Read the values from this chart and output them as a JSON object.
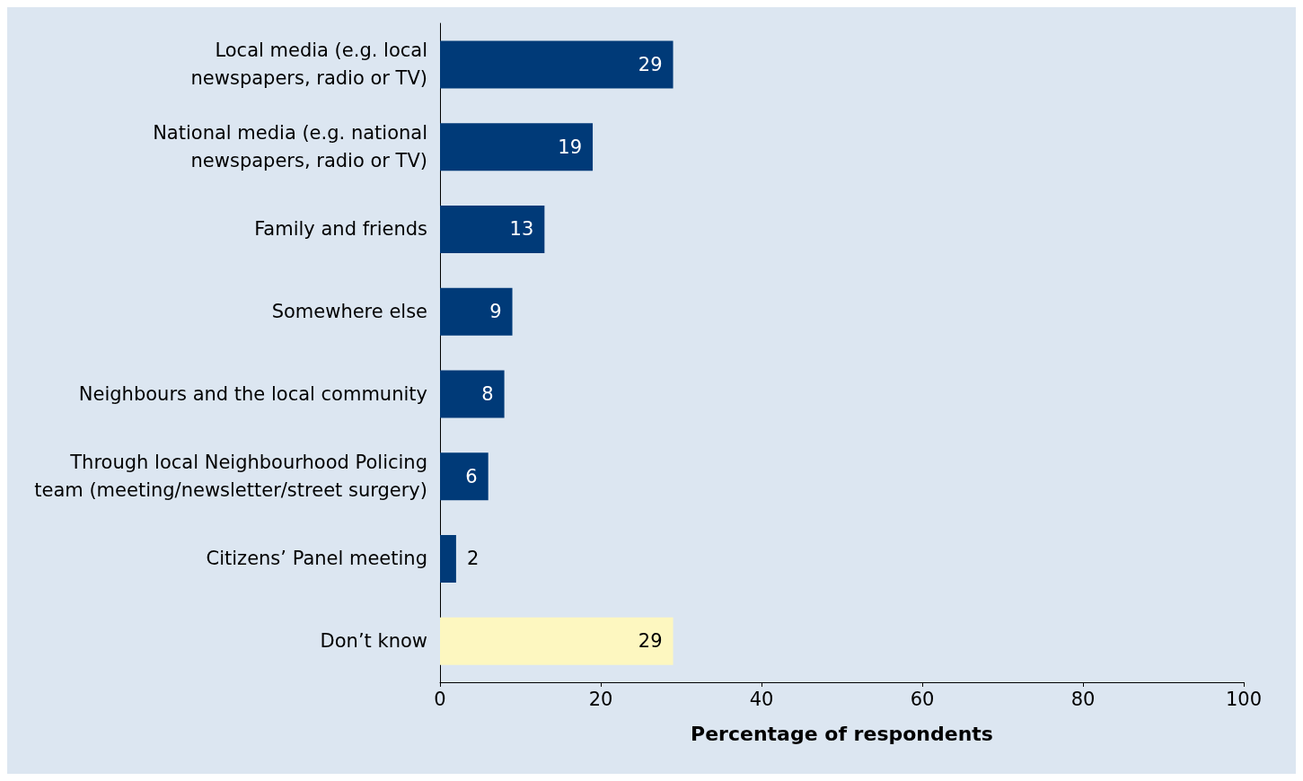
{
  "chart_data": {
    "type": "bar",
    "orientation": "horizontal",
    "categories": [
      "Local media (e.g. local\nnewspapers, radio or TV)",
      "National media (e.g. national\nnewspapers, radio or TV)",
      "Family and friends",
      "Somewhere else",
      "Neighbours and the local community",
      "Through local Neighbourhood Policing\nteam (meeting/newsletter/street surgery)",
      "Citizens’ Panel meeting",
      "Don’t know"
    ],
    "values": [
      29,
      19,
      13,
      9,
      8,
      6,
      2,
      29
    ],
    "colors": [
      "#003a78",
      "#003a78",
      "#003a78",
      "#003a78",
      "#003a78",
      "#003a78",
      "#003a78",
      "#fdf7c0"
    ],
    "xlim": [
      0,
      100
    ],
    "xticks": [
      0,
      20,
      40,
      60,
      80,
      100
    ],
    "xlabel": "Percentage of respondents",
    "data_labels": true
  }
}
